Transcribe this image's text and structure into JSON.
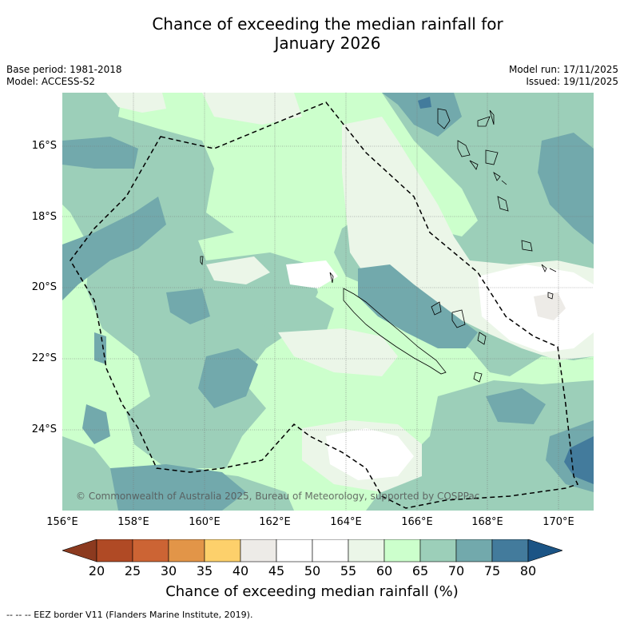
{
  "title_line1": "Chance of exceeding the median rainfall for",
  "title_line2": "January 2026",
  "meta": {
    "base_period": "Base period: 1981-2018",
    "model": "Model: ACCESS-S2",
    "model_run": "Model run: 17/11/2025",
    "issued": "Issued: 19/11/2025"
  },
  "map": {
    "lat_labels": [
      "16°S",
      "18°S",
      "20°S",
      "22°S",
      "24°S"
    ],
    "lon_labels": [
      "156°E",
      "158°E",
      "160°E",
      "162°E",
      "164°E",
      "166°E",
      "168°E",
      "170°E"
    ],
    "copyright": "© Commonwealth of Australia 2025, Bureau of Meteorology, supported by COSPPac"
  },
  "colorbar": {
    "ticks": [
      "20",
      "25",
      "30",
      "35",
      "40",
      "45",
      "50",
      "55",
      "60",
      "65",
      "70",
      "75",
      "80"
    ],
    "colors": {
      "below_20": "#8c3a1f",
      "c20_25": "#b04a25",
      "c25_30": "#cc6434",
      "c30_35": "#e29548",
      "c35_40": "#fdd06b",
      "c40_45": "#edebe7",
      "c45_55": "#ffffff",
      "c55_60": "#ebf6e8",
      "c60_65": "#ccffcc",
      "c65_70": "#9ccfb9",
      "c70_75": "#72a9ac",
      "c75_80": "#437b9c",
      "above_80": "#1b5485"
    },
    "label": "Chance of exceeding median rainfall (%)"
  },
  "footnote": "--  --  -- EEZ border V11 (Flanders Marine Institute, 2019)."
}
